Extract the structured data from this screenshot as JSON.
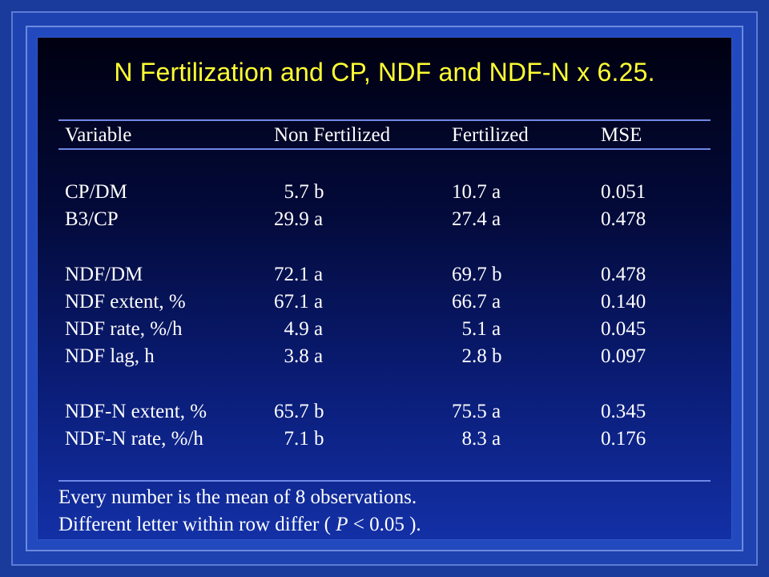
{
  "title": "N Fertilization and CP, NDF and NDF-N x 6.25.",
  "table": {
    "headers": [
      "Variable",
      "Non Fertilized",
      "Fertilized",
      "MSE"
    ],
    "rows": [
      {
        "variable": "CP/DM",
        "non_fertilized": "  5.7 b",
        "fertilized": "10.7 a",
        "mse": "0.051"
      },
      {
        "variable": "B3/CP",
        "non_fertilized": "29.9 a",
        "fertilized": "27.4 a",
        "mse": "0.478"
      },
      {
        "variable": "NDF/DM",
        "non_fertilized": "72.1 a",
        "fertilized": "69.7 b",
        "mse": "0.478"
      },
      {
        "variable": "NDF extent, %",
        "non_fertilized": "67.1 a",
        "fertilized": "66.7 a",
        "mse": "0.140"
      },
      {
        "variable": "NDF rate, %/h",
        "non_fertilized": "  4.9 a",
        "fertilized": "  5.1 a",
        "mse": "0.045"
      },
      {
        "variable": "NDF lag, h",
        "non_fertilized": "  3.8 a",
        "fertilized": "  2.8 b",
        "mse": "0.097"
      },
      {
        "variable": "NDF-N extent, %",
        "non_fertilized": "65.7 b",
        "fertilized": "75.5 a",
        "mse": "0.345"
      },
      {
        "variable": "NDF-N rate, %/h",
        "non_fertilized": "  7.1 b",
        "fertilized": "  8.3 a",
        "mse": "0.176"
      }
    ]
  },
  "footnotes": {
    "line1": "Every number is the mean of 8 observations.",
    "line2_prefix": "Different letter within row differ ( ",
    "line2_italic": "P",
    "line2_suffix": " < 0.05 )."
  }
}
